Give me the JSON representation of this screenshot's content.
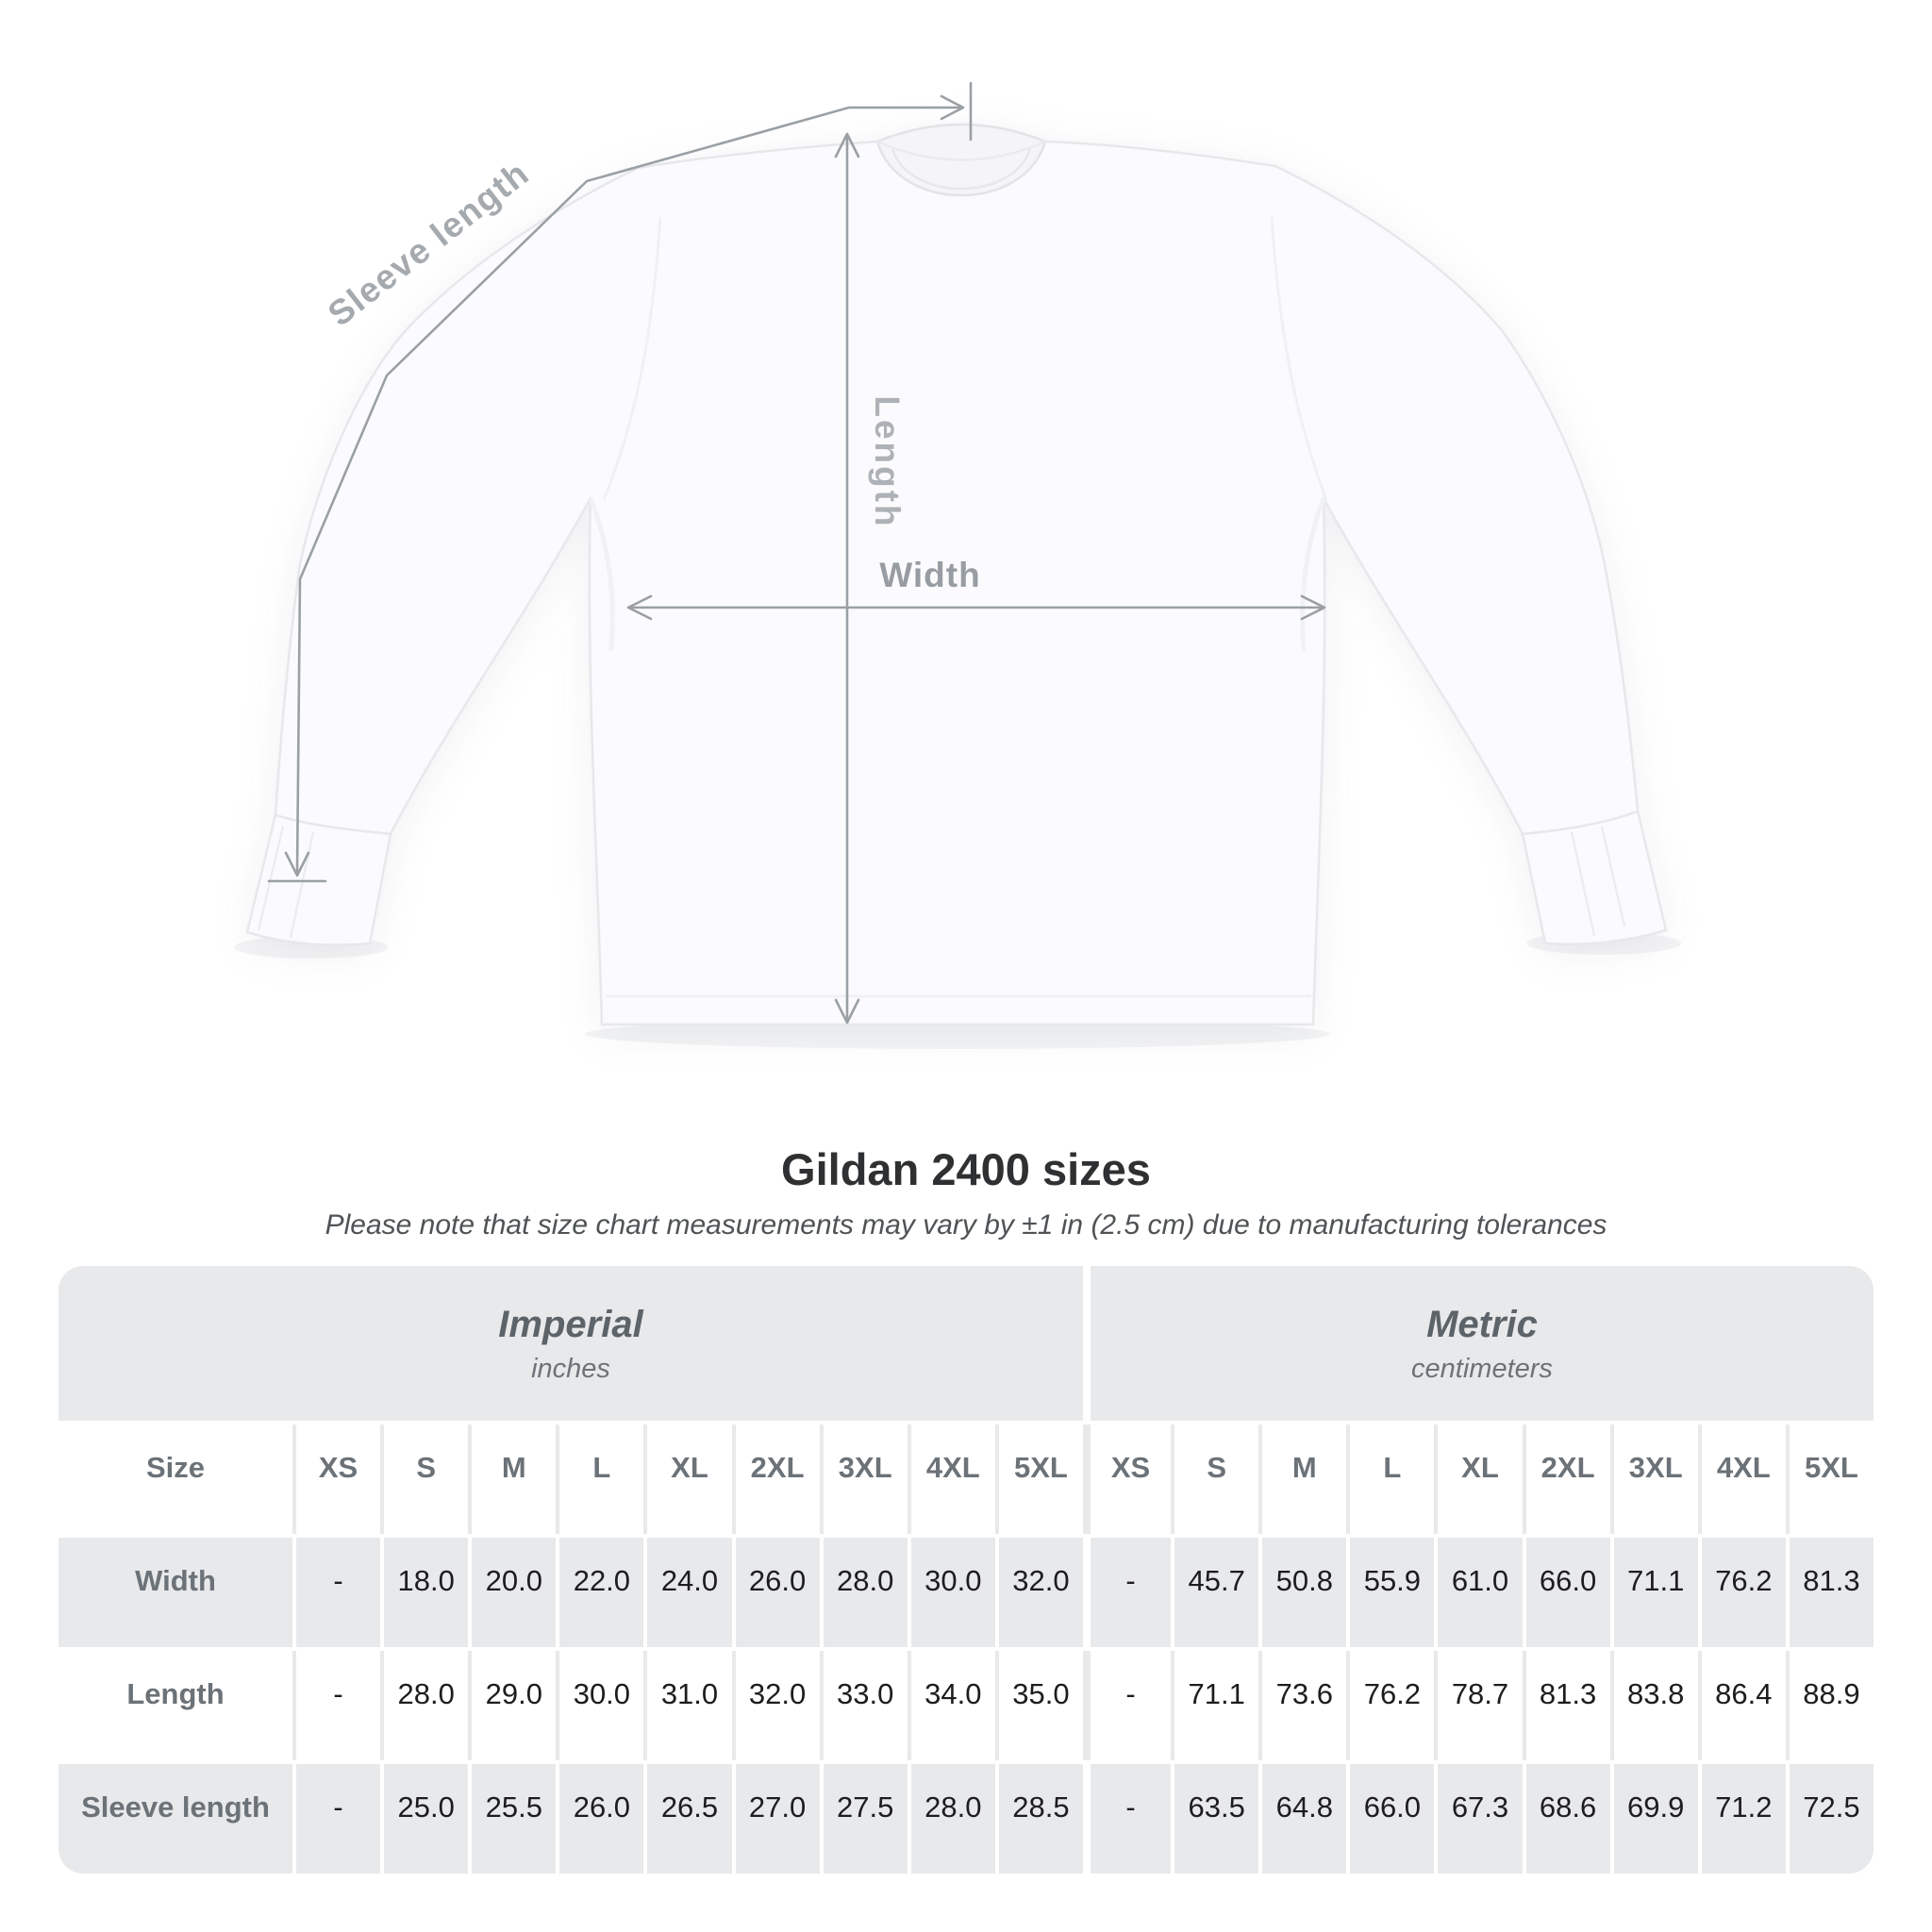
{
  "heading": {
    "title": "Gildan 2400 sizes",
    "subtitle": "Please note that size chart measurements may vary by ±1 in (2.5 cm) due to manufacturing tolerances"
  },
  "diagram": {
    "labels": {
      "sleeve_length": "Sleeve length",
      "length": "Length",
      "width": "Width"
    }
  },
  "table": {
    "size_header": "Size",
    "sections": [
      {
        "label": "Imperial",
        "unit": "inches"
      },
      {
        "label": "Metric",
        "unit": "centimeters"
      }
    ],
    "sizes": [
      "XS",
      "S",
      "M",
      "L",
      "XL",
      "2XL",
      "3XL",
      "4XL",
      "5XL"
    ],
    "empty_cell": "-"
  },
  "chart_data": {
    "type": "table",
    "title": "Gildan 2400 sizes",
    "columns": [
      "XS",
      "S",
      "M",
      "L",
      "XL",
      "2XL",
      "3XL",
      "4XL",
      "5XL"
    ],
    "units": {
      "imperial": "inches",
      "metric": "centimeters"
    },
    "rows": [
      {
        "measure": "Width",
        "imperial": [
          null,
          18.0,
          20.0,
          22.0,
          24.0,
          26.0,
          28.0,
          30.0,
          32.0
        ],
        "metric": [
          null,
          45.7,
          50.8,
          55.9,
          61.0,
          66.0,
          71.1,
          76.2,
          81.3
        ]
      },
      {
        "measure": "Length",
        "imperial": [
          null,
          28.0,
          29.0,
          30.0,
          31.0,
          32.0,
          33.0,
          34.0,
          35.0
        ],
        "metric": [
          null,
          71.1,
          73.6,
          76.2,
          78.7,
          81.3,
          83.8,
          86.4,
          88.9
        ]
      },
      {
        "measure": "Sleeve length",
        "imperial": [
          null,
          25.0,
          25.5,
          26.0,
          26.5,
          27.0,
          27.5,
          28.0,
          28.5
        ],
        "metric": [
          null,
          63.5,
          64.8,
          66.0,
          67.3,
          68.6,
          69.9,
          71.2,
          72.5
        ]
      }
    ]
  },
  "colors": {
    "page_background": "#ffffff",
    "table_band": "#e8e9eb",
    "header_text": "#6b7278",
    "value_text": "#1d1d1f",
    "title_text": "#2e3032",
    "subtitle_text": "#4f5356",
    "measure_line": "#9aa0a4",
    "measure_label": "#a5aaaf"
  }
}
